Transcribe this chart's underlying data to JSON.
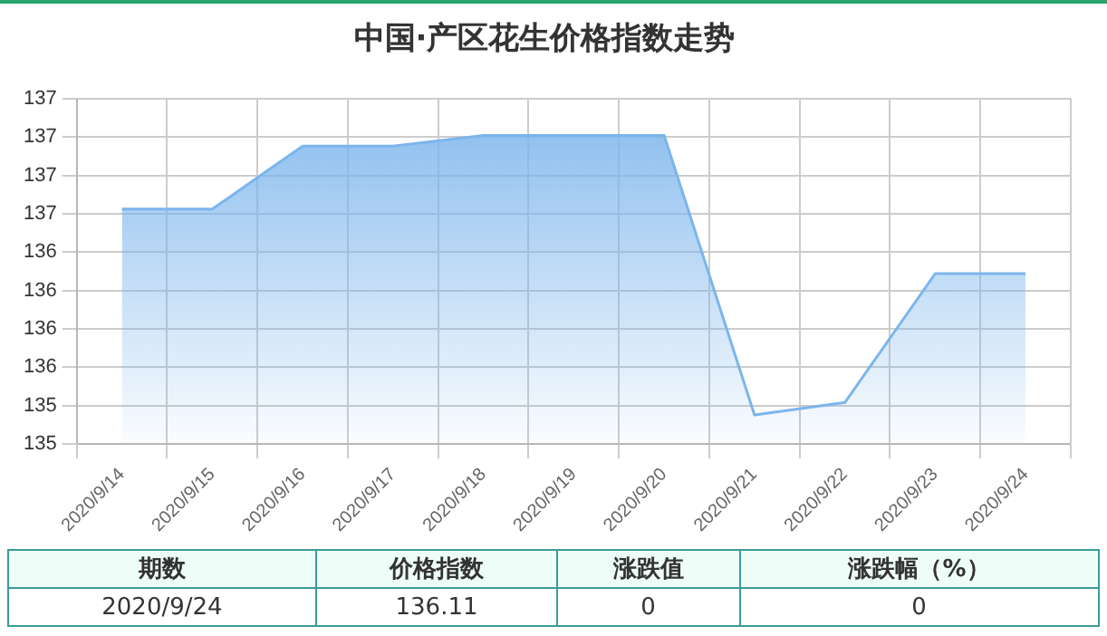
{
  "chart_data": {
    "type": "area",
    "title": "中国·产区花生价格指数走势",
    "categories": [
      "2020/9/14",
      "2020/9/15",
      "2020/9/16",
      "2020/9/17",
      "2020/9/18",
      "2020/9/19",
      "2020/9/20",
      "2020/9/21",
      "2020/9/22",
      "2020/9/23",
      "2020/9/24"
    ],
    "series": [
      {
        "color": "#7cb5ec",
        "values": [
          136.53,
          136.53,
          136.94,
          136.94,
          137.01,
          137.01,
          137.01,
          135.19,
          135.27,
          136.11,
          136.11
        ]
      }
    ],
    "ylim": [
      135,
      137.25
    ],
    "yticks": [
      {
        "value": 135,
        "label": "135"
      },
      {
        "value": 135.25,
        "label": "135"
      },
      {
        "value": 135.5,
        "label": "136"
      },
      {
        "value": 135.75,
        "label": "136"
      },
      {
        "value": 136,
        "label": "136"
      },
      {
        "value": 136.25,
        "label": "136"
      },
      {
        "value": 136.5,
        "label": "137"
      },
      {
        "value": 136.75,
        "label": "137"
      },
      {
        "value": 137,
        "label": "137"
      },
      {
        "value": 137.25,
        "label": "137"
      }
    ],
    "grid": true,
    "legend": false,
    "marker": "none",
    "annotations": [
      "期数",
      "价格指数",
      "涨跌值",
      "涨跌幅（%）",
      "2020/9/24",
      "136.11",
      "0",
      "0"
    ]
  }
}
